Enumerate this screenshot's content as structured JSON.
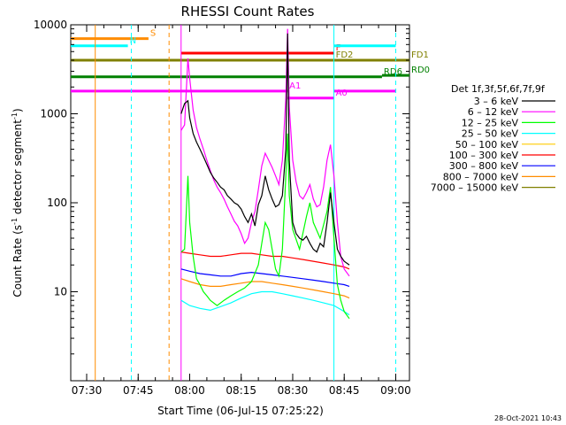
{
  "chart_data": {
    "type": "line",
    "title": "RHESSI Count Rates",
    "xlabel": "Start Time (06-Jul-15 07:25:22)",
    "ylabel_main": "Count Rate (s",
    "ylabel_sup1": "-1",
    "ylabel_mid": " detector segment",
    "ylabel_sup2": "-1",
    "ylabel_end": ")",
    "y_scale": "log",
    "ylim": [
      1,
      10000
    ],
    "xlim": [
      "07:25:22",
      "09:04:00"
    ],
    "x_ticks": [
      "07:30",
      "07:45",
      "08:00",
      "08:15",
      "08:30",
      "08:45",
      "09:00"
    ],
    "y_ticks": [
      "10",
      "100",
      "1000",
      "10000"
    ],
    "footer": "28-Oct-2021 10:43",
    "legend_title": "Det 1f,3f,5f,6f,7f,9f",
    "series": [
      {
        "name": "3 - 6 keV",
        "color": "#000000",
        "label": "3 – 6 keV"
      },
      {
        "name": "6 - 12 keV",
        "color": "#ff00ff",
        "label": "6 – 12 keV"
      },
      {
        "name": "12 - 25 keV",
        "color": "#00ff00",
        "label": "12 – 25 keV"
      },
      {
        "name": "25 - 50 keV",
        "color": "#00ffff",
        "label": "25 – 50 keV"
      },
      {
        "name": "50 - 100 keV",
        "color": "#ffcc00",
        "label": "50 – 100 keV"
      },
      {
        "name": "100 - 300 keV",
        "color": "#ff0000",
        "label": "100 – 300 keV"
      },
      {
        "name": "300 - 800 keV",
        "color": "#0000ff",
        "label": "300 – 800 keV"
      },
      {
        "name": "800 - 7000 keV",
        "color": "#ff8c00",
        "label": "800 – 7000 keV"
      },
      {
        "name": "7000 - 15000 keV",
        "color": "#808000",
        "label": "7000 – 15000 keV"
      }
    ],
    "data": {
      "3 - 6 keV": [
        [
          0,
          null
        ]
      ],
      "samples": {
        "black": [
          [
            "07:57:30",
            1000
          ],
          [
            "07:58:30",
            1300
          ],
          [
            "07:59:30",
            1400
          ],
          [
            "08:00:00",
            900
          ],
          [
            "08:01:00",
            600
          ],
          [
            "08:02:00",
            480
          ],
          [
            "08:03:00",
            400
          ],
          [
            "08:04:00",
            330
          ],
          [
            "08:05:00",
            270
          ],
          [
            "08:06:00",
            220
          ],
          [
            "08:07:00",
            190
          ],
          [
            "08:08:00",
            170
          ],
          [
            "08:09:00",
            150
          ],
          [
            "08:10:00",
            140
          ],
          [
            "08:11:00",
            120
          ],
          [
            "08:12:00",
            110
          ],
          [
            "08:13:00",
            100
          ],
          [
            "08:14:00",
            95
          ],
          [
            "08:15:00",
            85
          ],
          [
            "08:16:00",
            70
          ],
          [
            "08:17:00",
            60
          ],
          [
            "08:18:00",
            75
          ],
          [
            "08:19:00",
            55
          ],
          [
            "08:20:00",
            95
          ],
          [
            "08:21:00",
            120
          ],
          [
            "08:22:00",
            200
          ],
          [
            "08:23:00",
            140
          ],
          [
            "08:24:00",
            110
          ],
          [
            "08:25:00",
            90
          ],
          [
            "08:26:00",
            95
          ],
          [
            "08:27:00",
            120
          ],
          [
            "08:28:00",
            400
          ],
          [
            "08:28:30",
            8000
          ],
          [
            "08:29:00",
            300
          ],
          [
            "08:30:00",
            60
          ],
          [
            "08:31:00",
            45
          ],
          [
            "08:32:00",
            40
          ],
          [
            "08:33:00",
            38
          ],
          [
            "08:34:00",
            42
          ],
          [
            "08:35:00",
            35
          ],
          [
            "08:36:00",
            30
          ],
          [
            "08:37:00",
            28
          ],
          [
            "08:38:00",
            35
          ],
          [
            "08:39:00",
            32
          ],
          [
            "08:40:00",
            60
          ],
          [
            "08:41:00",
            130
          ],
          [
            "08:42:00",
            60
          ],
          [
            "08:43:00",
            30
          ],
          [
            "08:44:00",
            25
          ],
          [
            "08:45:00",
            22
          ],
          [
            "08:46:30",
            20
          ]
        ],
        "magenta": [
          [
            "07:57:30",
            650
          ],
          [
            "07:58:30",
            750
          ],
          [
            "07:59:30",
            4200
          ],
          [
            "08:00:00",
            2500
          ],
          [
            "08:01:00",
            1100
          ],
          [
            "08:02:00",
            700
          ],
          [
            "08:03:00",
            520
          ],
          [
            "08:04:00",
            400
          ],
          [
            "08:05:00",
            300
          ],
          [
            "08:06:00",
            230
          ],
          [
            "08:07:00",
            180
          ],
          [
            "08:08:00",
            150
          ],
          [
            "08:09:00",
            130
          ],
          [
            "08:10:00",
            110
          ],
          [
            "08:11:00",
            90
          ],
          [
            "08:12:00",
            75
          ],
          [
            "08:13:00",
            62
          ],
          [
            "08:14:00",
            55
          ],
          [
            "08:15:00",
            45
          ],
          [
            "08:16:00",
            35
          ],
          [
            "08:17:00",
            40
          ],
          [
            "08:18:00",
            60
          ],
          [
            "08:19:00",
            80
          ],
          [
            "08:20:00",
            140
          ],
          [
            "08:21:00",
            260
          ],
          [
            "08:22:00",
            360
          ],
          [
            "08:23:00",
            300
          ],
          [
            "08:24:00",
            250
          ],
          [
            "08:25:00",
            200
          ],
          [
            "08:26:00",
            160
          ],
          [
            "08:27:00",
            300
          ],
          [
            "08:28:00",
            1500
          ],
          [
            "08:28:30",
            9000
          ],
          [
            "08:29:00",
            1200
          ],
          [
            "08:30:00",
            300
          ],
          [
            "08:31:00",
            170
          ],
          [
            "08:32:00",
            120
          ],
          [
            "08:33:00",
            110
          ],
          [
            "08:34:00",
            130
          ],
          [
            "08:35:00",
            160
          ],
          [
            "08:36:00",
            110
          ],
          [
            "08:37:00",
            90
          ],
          [
            "08:38:00",
            95
          ],
          [
            "08:39:00",
            150
          ],
          [
            "08:40:00",
            300
          ],
          [
            "08:41:00",
            450
          ],
          [
            "08:42:00",
            200
          ],
          [
            "08:43:00",
            60
          ],
          [
            "08:44:00",
            25
          ],
          [
            "08:45:00",
            18
          ],
          [
            "08:46:30",
            15
          ]
        ],
        "green": [
          [
            "07:57:30",
            28
          ],
          [
            "07:58:30",
            30
          ],
          [
            "07:59:30",
            200
          ],
          [
            "08:00:00",
            60
          ],
          [
            "08:01:00",
            25
          ],
          [
            "08:02:00",
            14
          ],
          [
            "08:03:00",
            12
          ],
          [
            "08:04:00",
            10
          ],
          [
            "08:05:00",
            9
          ],
          [
            "08:06:00",
            8
          ],
          [
            "08:08:00",
            7
          ],
          [
            "08:10:00",
            8
          ],
          [
            "08:12:00",
            9
          ],
          [
            "08:14:00",
            10
          ],
          [
            "08:16:00",
            11
          ],
          [
            "08:18:00",
            13
          ],
          [
            "08:20:00",
            20
          ],
          [
            "08:21:00",
            35
          ],
          [
            "08:22:00",
            60
          ],
          [
            "08:23:00",
            50
          ],
          [
            "08:24:00",
            30
          ],
          [
            "08:25:00",
            18
          ],
          [
            "08:26:00",
            15
          ],
          [
            "08:27:00",
            30
          ],
          [
            "08:28:00",
            200
          ],
          [
            "08:28:30",
            600
          ],
          [
            "08:29:00",
            120
          ],
          [
            "08:30:00",
            50
          ],
          [
            "08:32:00",
            30
          ],
          [
            "08:34:00",
            70
          ],
          [
            "08:35:00",
            100
          ],
          [
            "08:36:00",
            60
          ],
          [
            "08:38:00",
            40
          ],
          [
            "08:40:00",
            80
          ],
          [
            "08:41:00",
            150
          ],
          [
            "08:42:00",
            40
          ],
          [
            "08:43:00",
            12
          ],
          [
            "08:44:00",
            8
          ],
          [
            "08:45:00",
            6
          ],
          [
            "08:46:30",
            5
          ]
        ],
        "cyan": [
          [
            "07:57:30",
            8
          ],
          [
            "08:00:00",
            7
          ],
          [
            "08:03:00",
            6.5
          ],
          [
            "08:06:00",
            6.2
          ],
          [
            "08:09:00",
            6.8
          ],
          [
            "08:12:00",
            7.5
          ],
          [
            "08:15:00",
            8.5
          ],
          [
            "08:18:00",
            9.5
          ],
          [
            "08:21:00",
            10
          ],
          [
            "08:24:00",
            10
          ],
          [
            "08:27:00",
            9.5
          ],
          [
            "08:30:00",
            9
          ],
          [
            "08:33:00",
            8.5
          ],
          [
            "08:36:00",
            8
          ],
          [
            "08:39:00",
            7.5
          ],
          [
            "08:42:00",
            7
          ],
          [
            "08:45:00",
            6
          ],
          [
            "08:46:30",
            5.5
          ]
        ],
        "red": [
          [
            "07:57:30",
            28
          ],
          [
            "08:00:00",
            27
          ],
          [
            "08:03:00",
            26
          ],
          [
            "08:06:00",
            25
          ],
          [
            "08:09:00",
            25
          ],
          [
            "08:12:00",
            26
          ],
          [
            "08:15:00",
            27
          ],
          [
            "08:18:00",
            27
          ],
          [
            "08:21:00",
            26
          ],
          [
            "08:24:00",
            25
          ],
          [
            "08:27:00",
            25
          ],
          [
            "08:30:00",
            24
          ],
          [
            "08:33:00",
            23
          ],
          [
            "08:36:00",
            22
          ],
          [
            "08:39:00",
            21
          ],
          [
            "08:42:00",
            20
          ],
          [
            "08:45:00",
            19
          ],
          [
            "08:46:30",
            18
          ]
        ],
        "blue": [
          [
            "07:57:30",
            18
          ],
          [
            "08:00:00",
            17
          ],
          [
            "08:03:00",
            16
          ],
          [
            "08:06:00",
            15.5
          ],
          [
            "08:09:00",
            15
          ],
          [
            "08:12:00",
            15
          ],
          [
            "08:15:00",
            16
          ],
          [
            "08:18:00",
            16.5
          ],
          [
            "08:21:00",
            16
          ],
          [
            "08:24:00",
            15.5
          ],
          [
            "08:27:00",
            15
          ],
          [
            "08:30:00",
            14.5
          ],
          [
            "08:33:00",
            14
          ],
          [
            "08:36:00",
            13.5
          ],
          [
            "08:39:00",
            13
          ],
          [
            "08:42:00",
            12.5
          ],
          [
            "08:45:00",
            12
          ],
          [
            "08:46:30",
            11.5
          ]
        ],
        "orange": [
          [
            "07:57:30",
            14
          ],
          [
            "08:00:00",
            13
          ],
          [
            "08:03:00",
            12
          ],
          [
            "08:06:00",
            11.5
          ],
          [
            "08:09:00",
            11.5
          ],
          [
            "08:12:00",
            12
          ],
          [
            "08:15:00",
            12.5
          ],
          [
            "08:18:00",
            13
          ],
          [
            "08:21:00",
            13
          ],
          [
            "08:24:00",
            12.5
          ],
          [
            "08:27:00",
            12
          ],
          [
            "08:30:00",
            11.5
          ],
          [
            "08:33:00",
            11
          ],
          [
            "08:36:00",
            10.5
          ],
          [
            "08:39:00",
            10
          ],
          [
            "08:42:00",
            9.5
          ],
          [
            "08:45:00",
            9
          ],
          [
            "08:46:30",
            8.5
          ]
        ]
      }
    },
    "flags": {
      "S": {
        "label": "S",
        "color": "#ff8c00",
        "start": "07:25:22",
        "end": "07:48:00",
        "level": 7000
      },
      "N": {
        "label": "N",
        "color": "#00ffff",
        "start": "07:25:22",
        "end": "07:42:00",
        "level": 5800
      },
      "F": {
        "label": "F",
        "color": "#ff0000",
        "start": "07:57:30",
        "end": "08:42:00",
        "level": 4800
      },
      "FD1": {
        "label": "FD1",
        "color": "#808000",
        "start": "08:42:00",
        "end": "09:04:00",
        "level": 4000
      },
      "FD2": {
        "label": "FD2",
        "color": "#808000",
        "start": "07:25:22",
        "end": "08:42:00",
        "level": 4000
      },
      "RD0": {
        "label": "RD0",
        "color": "#008000",
        "start": "08:56:00",
        "end": "09:04:00",
        "level": 2700
      },
      "RD6": {
        "label": "RD6",
        "color": "#008000",
        "start": "07:25:22",
        "end": "08:56:00",
        "level": 2600
      },
      "A0": {
        "label": "A0",
        "color": "#ff00ff",
        "start": "08:28:30",
        "end": "08:42:00",
        "level": 1500
      },
      "A1": {
        "label": "A1",
        "color": "#ff00ff",
        "start": "07:25:22",
        "end": "08:28:30",
        "level": 1800
      },
      "N2": {
        "label": "",
        "color": "#00ffff",
        "start": "08:42:00",
        "end": "09:00:00",
        "level": 5800
      },
      "A1b": {
        "label": "",
        "color": "#ff00ff",
        "start": "08:42:00",
        "end": "09:00:00",
        "level": 1800
      }
    },
    "vlines": [
      {
        "time": "07:32:30",
        "color": "#ff8c00",
        "style": "solid"
      },
      {
        "time": "07:43:00",
        "color": "#00ffff",
        "style": "dashed"
      },
      {
        "time": "07:54:00",
        "color": "#ff8c00",
        "style": "dashed"
      },
      {
        "time": "07:57:30",
        "color": "#ff00ff",
        "style": "solid"
      },
      {
        "time": "08:42:00",
        "color": "#00ffff",
        "style": "solid"
      },
      {
        "time": "09:00:00",
        "color": "#00ffff",
        "style": "dashed"
      }
    ]
  }
}
